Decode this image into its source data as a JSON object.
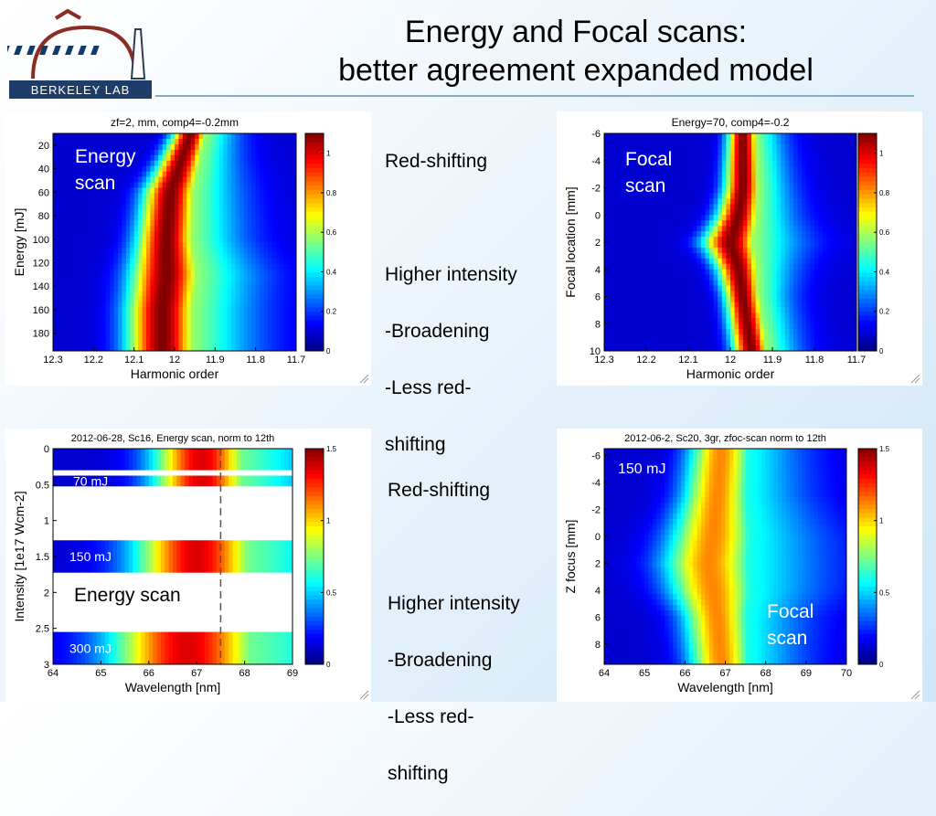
{
  "slide": {
    "title_line1": "Energy and Focal scans:",
    "title_line2": "better agreement expanded model",
    "logo_text": "BERKELEY LAB"
  },
  "notes_top": [
    "Red-shifting",
    "",
    "Higher intensity",
    "-Broadening",
    "-Less red-",
    "shifting"
  ],
  "notes_bottom": [
    "Red-shifting",
    "",
    "Higher intensity",
    "-Broadening",
    "-Less red-",
    "shifting"
  ],
  "chart_data": [
    {
      "type": "heatmap",
      "title": "zf=2, mm, comp4=-0.2mm",
      "xlabel": "Harmonic order",
      "ylabel": "Energy [mJ]",
      "xlim": [
        12.3,
        11.7
      ],
      "ylim": [
        10,
        195
      ],
      "x_ticks": [
        "12.3",
        "12.2",
        "12.1",
        "12",
        "11.9",
        "11.8",
        "11.7"
      ],
      "y_ticks": [
        "20",
        "40",
        "60",
        "80",
        "100",
        "120",
        "140",
        "160",
        "180"
      ],
      "colorbar": {
        "min": 0,
        "max": 1.1,
        "ticks": [
          "0",
          "0.2",
          "0.4",
          "0.6",
          "0.8",
          "1"
        ]
      },
      "annotation": "Energy\nscan",
      "ridge": {
        "y": [
          10,
          30,
          60,
          100,
          130,
          160,
          195
        ],
        "center": [
          11.96,
          11.98,
          12.01,
          12.02,
          12.02,
          12.03,
          12.03
        ],
        "width": [
          0.03,
          0.035,
          0.045,
          0.05,
          0.06,
          0.06,
          0.06
        ]
      }
    },
    {
      "type": "heatmap",
      "title": "Energy=70, comp4=-0.2",
      "xlabel": "Harmonic order",
      "ylabel": "Focal location [mm]",
      "xlim": [
        12.3,
        11.7
      ],
      "ylim": [
        -6,
        10
      ],
      "x_ticks": [
        "12.3",
        "12.2",
        "12.1",
        "12",
        "11.9",
        "11.8",
        "11.7"
      ],
      "y_ticks": [
        "-6",
        "-4",
        "-2",
        "0",
        "2",
        "4",
        "6",
        "8",
        "10"
      ],
      "colorbar": {
        "min": 0,
        "max": 1.1,
        "ticks": [
          "0",
          "0.2",
          "0.4",
          "0.6",
          "0.8",
          "1"
        ]
      },
      "annotation": "Focal\nscan",
      "ridge": {
        "y": [
          -6,
          -2,
          0,
          2,
          4,
          6,
          8,
          10
        ],
        "center": [
          11.97,
          11.97,
          11.98,
          12.0,
          11.98,
          11.97,
          11.96,
          11.95
        ],
        "width": [
          0.025,
          0.03,
          0.035,
          0.045,
          0.035,
          0.03,
          0.03,
          0.03
        ]
      }
    },
    {
      "type": "heatmap",
      "title": "2012-06-28, Sc16, Energy scan, norm to 12th",
      "xlabel": "Wavelength [nm]",
      "ylabel": "Intensity [1e17 Wcm-2]",
      "xlim": [
        64,
        69
      ],
      "ylim": [
        0,
        3
      ],
      "x_ticks": [
        "64",
        "65",
        "66",
        "67",
        "68",
        "69"
      ],
      "y_ticks": [
        "0",
        "0.5",
        "1",
        "1.5",
        "2",
        "2.5",
        "3"
      ],
      "colorbar": {
        "min": 0,
        "max": 1.5,
        "ticks": [
          "0",
          "0.5",
          "1",
          "1.5"
        ]
      },
      "reference_line_x": 67.5,
      "bands": [
        {
          "y": [
            0,
            0.3
          ],
          "center": 67.1,
          "width": 0.7,
          "label": ""
        },
        {
          "y": [
            0.35,
            0.55
          ],
          "center": 67.1,
          "width": 0.7,
          "label": "70 mJ"
        },
        {
          "y": [
            1.25,
            1.75
          ],
          "center": 67.0,
          "width": 0.9,
          "label": "150 mJ"
        },
        {
          "y": [
            2.55,
            3.0
          ],
          "center": 66.8,
          "width": 1.1,
          "label": "300 mJ"
        }
      ],
      "annotation": "Energy scan"
    },
    {
      "type": "heatmap",
      "title": "2012-06-2, Sc20, 3gr, zfoc-scan norm to 12th",
      "xlabel": "Wavelength [nm]",
      "ylabel": "Z focus [mm]",
      "xlim": [
        64,
        70
      ],
      "ylim": [
        -6.5,
        9.5
      ],
      "x_ticks": [
        "64",
        "65",
        "66",
        "67",
        "68",
        "69",
        "70"
      ],
      "y_ticks": [
        "-6",
        "-4",
        "-2",
        "0",
        "2",
        "4",
        "6",
        "8"
      ],
      "colorbar": {
        "min": 0,
        "max": 1.5,
        "ticks": [
          "0",
          "0.5",
          "1",
          "1.5"
        ]
      },
      "annotation_top": "150 mJ",
      "annotation": "Focal\nscan",
      "ridge": {
        "y": [
          -6.5,
          -3,
          0,
          2,
          4,
          6,
          9.5
        ],
        "center": [
          66.9,
          66.8,
          66.7,
          66.6,
          66.7,
          66.8,
          66.9
        ],
        "width": [
          0.55,
          0.6,
          0.75,
          0.8,
          0.75,
          0.6,
          0.55
        ]
      }
    }
  ]
}
